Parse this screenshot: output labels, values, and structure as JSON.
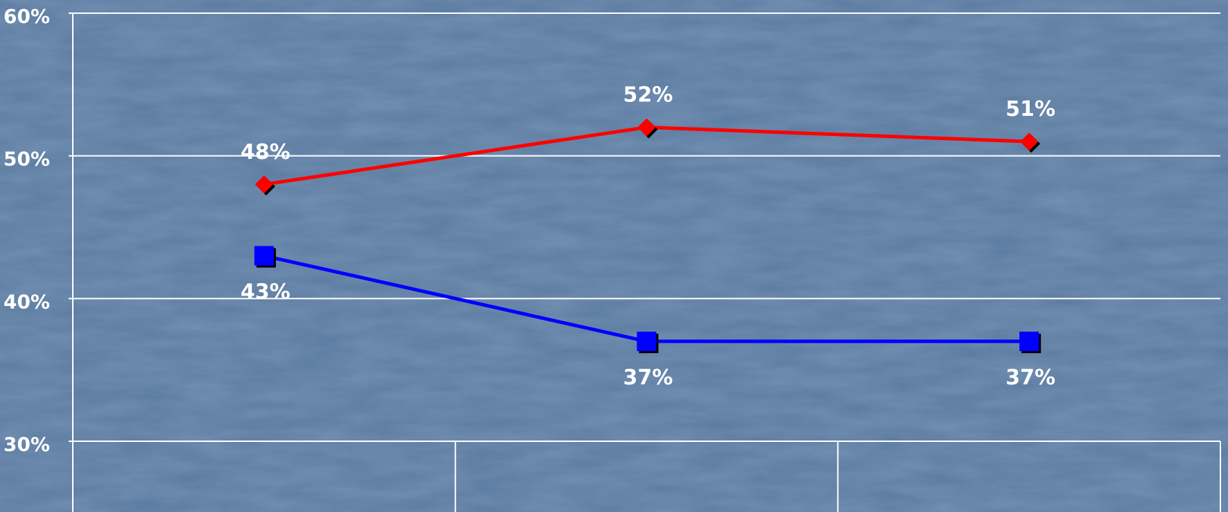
{
  "chart_data": {
    "type": "line",
    "categories": [
      "",
      "",
      ""
    ],
    "ylim": [
      30,
      60
    ],
    "yticks": [
      "30%",
      "40%",
      "50%",
      "60%"
    ],
    "ytick_values": [
      30,
      40,
      50,
      60
    ],
    "grid": true,
    "series": [
      {
        "color": "#ff0000",
        "marker": "diamond",
        "values": [
          48,
          52,
          51
        ],
        "labels": [
          "48%",
          "52%",
          "51%"
        ],
        "label_position": "above"
      },
      {
        "color": "#0000ff",
        "marker": "square",
        "values": [
          43,
          37,
          37
        ],
        "labels": [
          "43%",
          "37%",
          "37%"
        ],
        "label_position": "below"
      }
    ]
  },
  "colors": {
    "background": "#5a7aa0",
    "gridline": "#ffffff",
    "text": "#ffffff"
  }
}
